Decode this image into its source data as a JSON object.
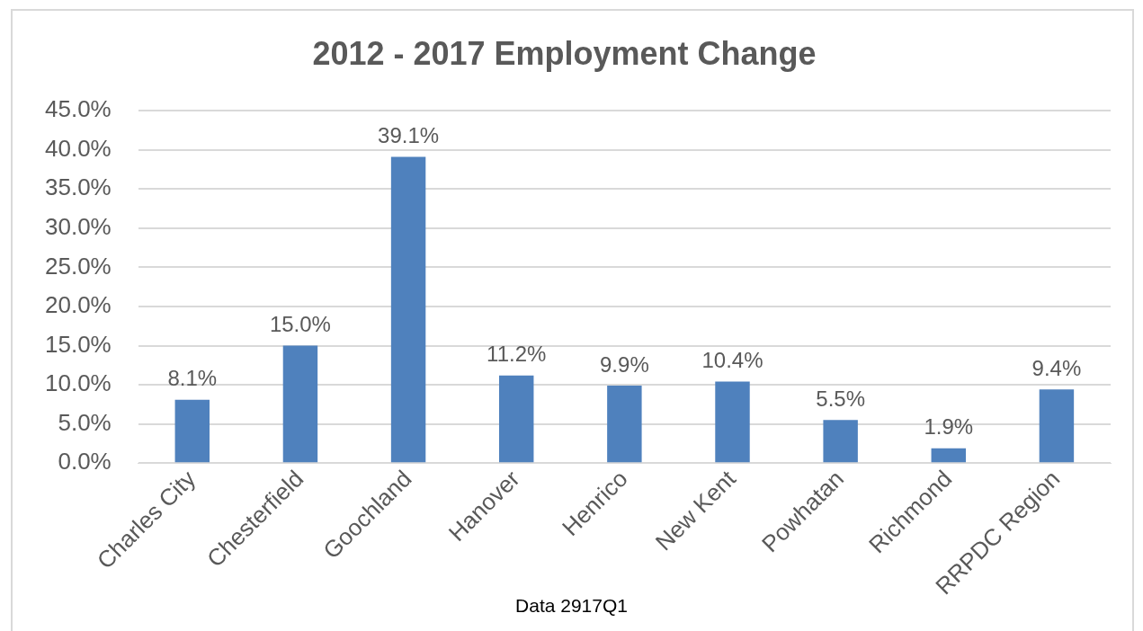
{
  "chart_data": {
    "type": "bar",
    "title": "2012 - 2017 Employment Change",
    "categories": [
      "Charles City",
      "Chesterfield",
      "Goochland",
      "Hanover",
      "Henrico",
      "New Kent",
      "Powhatan",
      "Richmond",
      "RRPDC Region"
    ],
    "values": [
      8.1,
      15.0,
      39.1,
      11.2,
      9.9,
      10.4,
      5.5,
      1.9,
      9.4
    ],
    "value_labels": [
      "8.1%",
      "15.0%",
      "39.1%",
      "11.2%",
      "9.9%",
      "10.4%",
      "5.5%",
      "1.9%",
      "9.4%"
    ],
    "color": "#4f81bd",
    "ylim": [
      0,
      45
    ],
    "yticks": [
      {
        "value": 0,
        "label": "0.0%"
      },
      {
        "value": 5,
        "label": "5.0%"
      },
      {
        "value": 10,
        "label": "10.0%"
      },
      {
        "value": 15,
        "label": "15.0%"
      },
      {
        "value": 20,
        "label": "20.0%"
      },
      {
        "value": 25,
        "label": "25.0%"
      },
      {
        "value": 30,
        "label": "30.0%"
      },
      {
        "value": 35,
        "label": "35.0%"
      },
      {
        "value": 40,
        "label": "40.0%"
      },
      {
        "value": 45,
        "label": "45.0%"
      }
    ],
    "grid": "y",
    "annotations": [
      "Data 2917Q1"
    ]
  }
}
